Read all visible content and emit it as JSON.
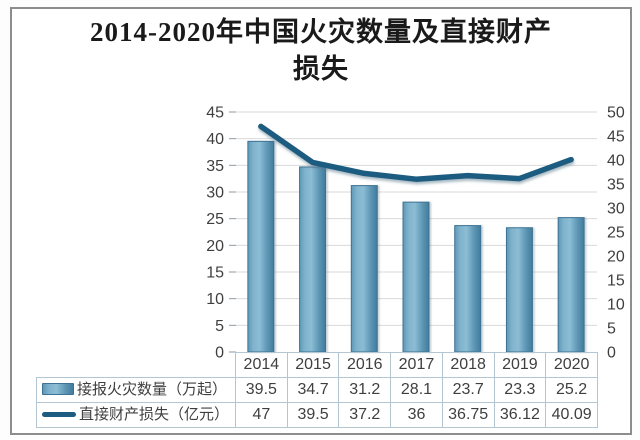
{
  "title": {
    "line1": "2014-2020年中国火灾数量及直接财产",
    "line2": "损失"
  },
  "chart_data": {
    "type": "bar+line combo",
    "title": "2014-2020年中国火灾数量及直接财产损失",
    "categories": [
      "2014",
      "2015",
      "2016",
      "2017",
      "2018",
      "2019",
      "2020"
    ],
    "series": [
      {
        "name": "接报火灾数量（万起）",
        "type": "bar",
        "axis": "left",
        "values": [
          39.5,
          34.7,
          31.2,
          28.1,
          23.7,
          23.3,
          25.2
        ]
      },
      {
        "name": "直接财产损失（亿元）",
        "type": "line",
        "axis": "right",
        "values": [
          47,
          39.5,
          37.2,
          36,
          36.75,
          36.12,
          40.09
        ]
      }
    ],
    "left_axis": {
      "min": 0,
      "max": 45,
      "step": 5,
      "labels_bottom_to_top": [
        "0",
        "5",
        "10",
        "15",
        "20",
        "25",
        "30",
        "35",
        "40",
        "45"
      ]
    },
    "right_axis": {
      "min": 0,
      "max": 50,
      "step": 5,
      "labels_bottom_to_top": [
        "0",
        "5",
        "10",
        "15",
        "20",
        "25",
        "30",
        "35",
        "40",
        "45",
        "50"
      ]
    },
    "grid": true,
    "legend_position": "data-table-left"
  },
  "table": {
    "header_years": [
      "2014",
      "2015",
      "2016",
      "2017",
      "2018",
      "2019",
      "2020"
    ],
    "rows": [
      {
        "label": "接报火灾数量（万起）",
        "swatch": "bar-swatch",
        "values": [
          "39.5",
          "34.7",
          "31.2",
          "28.1",
          "23.7",
          "23.3",
          "25.2"
        ]
      },
      {
        "label": "直接财产损失（亿元）",
        "swatch": "line-swatch",
        "values": [
          "47",
          "39.5",
          "37.2",
          "36",
          "36.75",
          "36.12",
          "40.09"
        ]
      }
    ]
  },
  "colors": {
    "bar_fill_stops": [
      "#5E98B6",
      "#7FB2CC",
      "#8CBDD5",
      "#5D96B4",
      "#417C9D"
    ],
    "bar_border": "#3D7294",
    "line": "#1D5B80",
    "grid": "#D9D9D9",
    "tick": "#8C9BA5",
    "axis_text": "#3F3F3F",
    "table_border": "#B3C6D1",
    "table_text": "#3F3F3F",
    "frame_border": "#8D8D8D",
    "title_text": "#1A1A1A"
  }
}
